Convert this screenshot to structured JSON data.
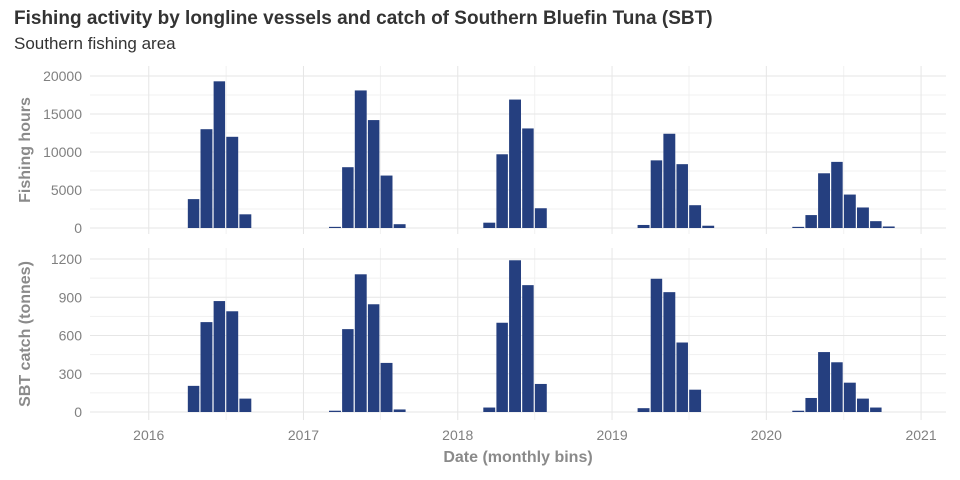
{
  "title": "Fishing activity by longline vessels and catch of Southern Bluefin Tuna (SBT)",
  "subtitle": "Southern fishing area",
  "xlabel": "Date (monthly bins)",
  "chart_data": [
    {
      "type": "bar",
      "ylabel": "Fishing hours",
      "ylim": [
        0,
        20000
      ],
      "yticks": [
        0,
        5000,
        10000,
        15000,
        20000
      ],
      "xlim": [
        "2015-08-15",
        "2021-03-01"
      ],
      "xticks": [
        "2016",
        "2017",
        "2018",
        "2019",
        "2020",
        "2021"
      ],
      "grid": true,
      "color": "#253f7f",
      "x": [
        "2016-04",
        "2016-05",
        "2016-06",
        "2016-07",
        "2016-08",
        "2017-03",
        "2017-04",
        "2017-05",
        "2017-06",
        "2017-07",
        "2017-08",
        "2018-03",
        "2018-04",
        "2018-05",
        "2018-06",
        "2018-07",
        "2019-03",
        "2019-04",
        "2019-05",
        "2019-06",
        "2019-07",
        "2019-08",
        "2020-03",
        "2020-04",
        "2020-05",
        "2020-06",
        "2020-07",
        "2020-08",
        "2020-09",
        "2020-10"
      ],
      "values": [
        3800,
        13000,
        19300,
        12000,
        1800,
        150,
        8000,
        18100,
        14200,
        6900,
        500,
        700,
        9700,
        16900,
        13100,
        2600,
        400,
        8900,
        12400,
        8400,
        3000,
        300,
        150,
        1700,
        7200,
        8700,
        4400,
        2700,
        900,
        200
      ]
    },
    {
      "type": "bar",
      "ylabel": "SBT catch (tonnes)",
      "ylim": [
        0,
        1200
      ],
      "yticks": [
        0,
        300,
        600,
        900,
        1200
      ],
      "xlim": [
        "2015-08-15",
        "2021-03-01"
      ],
      "xticks": [
        "2016",
        "2017",
        "2018",
        "2019",
        "2020",
        "2021"
      ],
      "grid": true,
      "color": "#253f7f",
      "x": [
        "2016-04",
        "2016-05",
        "2016-06",
        "2016-07",
        "2016-08",
        "2017-03",
        "2017-04",
        "2017-05",
        "2017-06",
        "2017-07",
        "2017-08",
        "2018-03",
        "2018-04",
        "2018-05",
        "2018-06",
        "2018-07",
        "2019-03",
        "2019-04",
        "2019-05",
        "2019-06",
        "2019-07",
        "2020-03",
        "2020-04",
        "2020-05",
        "2020-06",
        "2020-07",
        "2020-08",
        "2020-09"
      ],
      "values": [
        205,
        705,
        870,
        790,
        105,
        10,
        650,
        1080,
        845,
        385,
        20,
        35,
        700,
        1190,
        995,
        220,
        30,
        1045,
        940,
        545,
        175,
        10,
        110,
        470,
        390,
        230,
        105,
        35
      ]
    }
  ]
}
